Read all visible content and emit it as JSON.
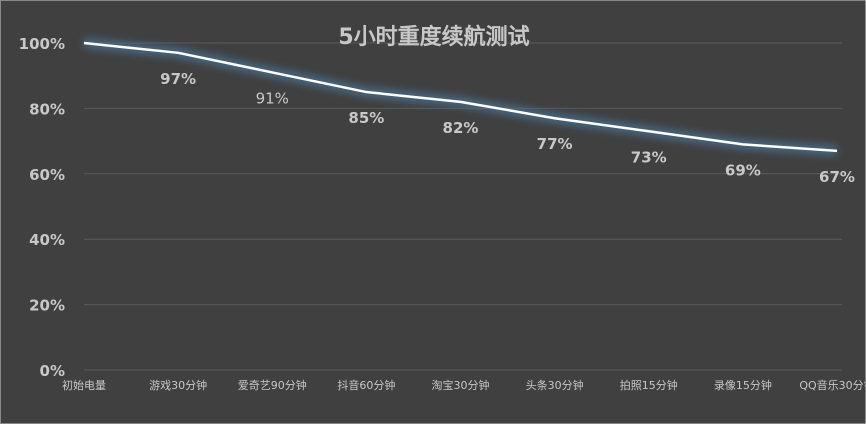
{
  "chart_data": {
    "type": "line",
    "title": "5小时重度续航测试",
    "categories": [
      "初始电量",
      "游戏30分钟",
      "爱奇艺90分钟",
      "抖音60分钟",
      "淘宝30分钟",
      "头条30分钟",
      "拍照15分钟",
      "录像15分钟",
      "QQ音乐30分钟"
    ],
    "values": [
      100,
      97,
      91,
      85,
      82,
      77,
      73,
      69,
      67
    ],
    "data_labels": [
      "",
      "97%",
      "91%",
      "85%",
      "82%",
      "77%",
      "73%",
      "69%",
      "67%"
    ],
    "yticks": [
      "0%",
      "20%",
      "40%",
      "60%",
      "80%",
      "100%"
    ],
    "ylim": [
      0,
      100
    ],
    "grid": true,
    "legend": "none",
    "colors": {
      "background": "#404040",
      "line": "#ffffff",
      "glow": "#4a6d8c",
      "grid": "#5a5a5a",
      "text": "#c8c8c8"
    }
  }
}
